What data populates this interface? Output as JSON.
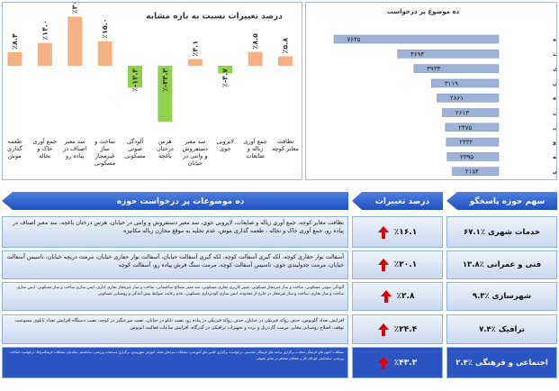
{
  "chart_data": [
    {
      "type": "bar",
      "orientation": "vertical",
      "title": "درصد تغییرات نسبت به بازه مشابه",
      "categories": [
        "نظافت معابر کوچه",
        "جمع آوری زباله و ضایعات",
        "لایروبی جوی",
        "سد معبر دستفروش و وانتی در خیابان",
        "هرس درختان باغچه",
        "آلودگی صوتی مسکونی",
        "ساخت و ساز غیرمجاز مسکونی",
        "سد معبر اصناف در پیاده رو",
        "جمع آوری خاک و نخاله",
        "طعمه گذاری موش"
      ],
      "values": [
        5.8,
        8.5,
        -4.7,
        4.1,
        -34.3,
        -13.4,
        15.0,
        30.2,
        14.0,
        8.4
      ],
      "value_labels": [
        "٪۵.۸",
        "٪۸.۵",
        "٪-۴.۷",
        "٪۴.۱",
        "٪-۳۴.۳",
        "٪-۱۳.۴",
        "٪۱۵.۰",
        "٪۳۰.۲",
        "٪۱۴.۰",
        "٪۸.۴"
      ],
      "positive_color": "#f4b183",
      "negative_color": "#92d050"
    },
    {
      "type": "bar",
      "orientation": "horizontal",
      "title": "ده موضوع پر درخواست",
      "categories": [
        "نظافت معابر کوچه",
        "جمع آوری زباله و ضایعات",
        "لایروبی جوی",
        "سد معبر دستفروش و وانتی در خیابان",
        "هرس درختان باغچه",
        "آلودگی صوتی مسکونی",
        "ساخت و ساز غیرمجاز مسکونی",
        "سد معبر اصناف در پیاده رو",
        "جمع آوری خاک و نخاله",
        "طعمه گذاری موش"
      ],
      "values": [
        7645,
        4693,
        3934,
        3119,
        2861,
        2613,
        2475,
        2432,
        2395,
        2154
      ],
      "value_labels": [
        "۷۶۴۵",
        "۴۶۹۳",
        "۳۹۳۴",
        "۳۱۱۹",
        "۲۸۶۱",
        "۲۶۱۳",
        "۲۴۷۵",
        "۲۴۳۲",
        "۲۳۹۵",
        "۲۱۵۴"
      ],
      "color": "#9fb3d9"
    }
  ],
  "table": {
    "headers": [
      "ده موضوعات پر درخواست حوزه",
      "درصد تغییرات",
      "سهم حوزه  پاسخگو"
    ],
    "rows": [
      [
        "نظافت معابر کوچه، جمع آوری زباله و ضایعات، لایروبی جوی، سد معبر دستفروش و وانتی در خیابان، هرس درختان باغچه، سد معبر اصناف در پیاده رو، جمع آوری خاک و نخاله ، طعمه گذاری موش، عدم تخلیه به موقع مخازن زباله مکانیزه",
        "٪۱۶.۱",
        "خدمات شهری ٪۶۷.۱"
      ],
      [
        "آسفالت نوار حفاری کوچه، لکه گیری آسفالت کوچه، لکه گیری آسفالت خیابان، آسفالت نوار حفاری خیابان، مرمت دریچه خیابان، تاسیس آسفالت خیابان، مرمت جدولبندی جوی، تاسیس آسفالت کوچه، مرمت سنگ فرش پیاده رو، آسفالت کوچه",
        "٪۲۰.۱",
        "فنی و عمرانی ٪۱۳.۸"
      ],
      [
        "آلودگی صوتی مسکونی، ساخت و ساز غیرمجاز مسکونی، تغییر کاربری تجاری مسکونی، سد معبر مصالح ساختمانی، ساخت و ساز غیرمجاز تجاری اداری، ایمن سازی ساخت و ساز مسکونی، ایمن سازی ساخت و ساز تجاری، ساخت و ساز غیرمجاز در خارج از محدوده، ایمن سازی گودبرداری مسکونی، عدم رعایت ضوابط پیش آمدگی و روشنایی مسکونی",
        "٪۲.۸",
        "شهرسازی ٪۹.۳"
      ],
      [
        "افزایش تعداد گلوبوس، حذف زوائد فیزیکی در خیابان، حذف زوائد فیزیکی در پیاده رو، نصب تابلو در خیابان، نصب سرعتگیر در کوچه، نصب دستگاه افزایش تعداد تابلوی ممنوعیت توقف، اصلاح روشنایی معابر، مرمت گاردریل و نرده و تجهیزات ترافیکی در گذرگاه، افزایش ساعات فعالیت اتوبوس",
        "٪۲۴.۴",
        "ترافیک ٪۷.۴"
      ],
      [
        "مشکلات کانون های فرهنگی محلات، برگزاری برنامه های فرهنگی مناسبتی، درخواست برگزاری کلاس های آموزشی، مشکلات سراهای محله، آموزش شهروندی، برگزاری مسابقات ورزشی، ساماندهی متکدیان، مشکلات فرهنگسراها، درخواست امکانات ورزشی، ساماندهی کودکان کار و معتادان متجاهر در معابر عمومی",
        "٪۴۳.۳",
        "اجتماعی و فرهنگی ٪۲.۴"
      ]
    ]
  }
}
